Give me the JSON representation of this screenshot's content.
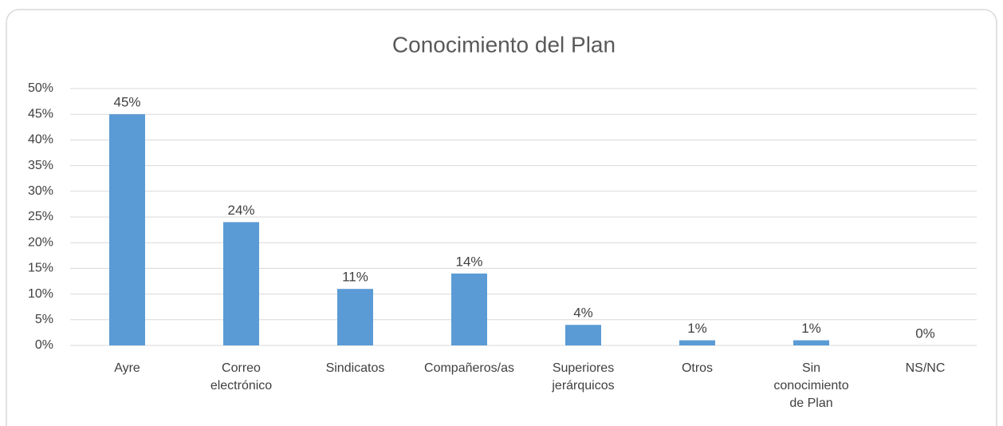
{
  "chart_data": {
    "type": "bar",
    "title": "Conocimiento del Plan",
    "categories": [
      "Ayre",
      "Correo electrónico",
      "Sindicatos",
      "Compañeros/as",
      "Superiores jerárquicos",
      "Otros",
      "Sin conocimiento de Plan",
      "NS/NC"
    ],
    "values": [
      45,
      24,
      11,
      14,
      4,
      1,
      1,
      0
    ],
    "value_labels": [
      "45%",
      "24%",
      "11%",
      "14%",
      "4%",
      "1%",
      "1%",
      "0%"
    ],
    "color": "#5b9bd5",
    "ylim": [
      0,
      50
    ],
    "yticks": [
      {
        "value": 0,
        "label": "0%"
      },
      {
        "value": 5,
        "label": "5%"
      },
      {
        "value": 10,
        "label": "10%"
      },
      {
        "value": 15,
        "label": "15%"
      },
      {
        "value": 20,
        "label": "20%"
      },
      {
        "value": 25,
        "label": "25%"
      },
      {
        "value": 30,
        "label": "30%"
      },
      {
        "value": 35,
        "label": "35%"
      },
      {
        "value": 40,
        "label": "40%"
      },
      {
        "value": 45,
        "label": "45%"
      },
      {
        "value": 50,
        "label": "50%"
      }
    ],
    "grid": true
  }
}
